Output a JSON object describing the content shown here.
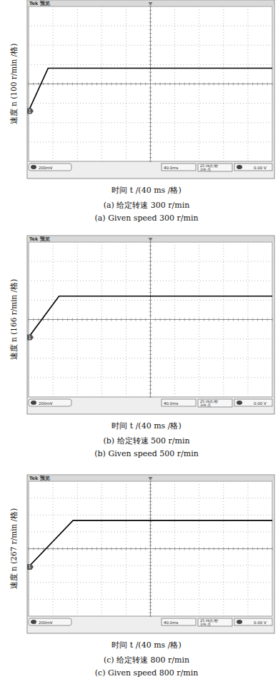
{
  "chart_data": [
    {
      "type": "line",
      "title": "(a) 给定转速 300 r/min",
      "subtitle": "(a) Given speed 300 r/min",
      "x_label": "时间 t /(40 ms /格)",
      "y_label": "速度 n (100 r/min /格)",
      "annotations": [
        "Tek 预览",
        "1",
        "200mV",
        "40.0ms",
        "25.0k次/秒",
        "10k 点",
        "0.00 V"
      ],
      "x": [
        0,
        32,
        400
      ],
      "values": [
        0,
        300,
        300
      ],
      "color": "#000000",
      "xlim": [
        0,
        400
      ],
      "xticks": [
        0,
        40,
        80,
        120,
        160,
        200,
        240,
        280,
        320,
        360,
        400
      ],
      "ylim": [
        -354,
        734
      ],
      "yticks": [
        -354,
        -218,
        -82,
        54,
        190,
        326,
        462,
        598,
        734
      ],
      "grid": true,
      "tick_labels": false
    },
    {
      "type": "line",
      "title": "(b) 给定转速 500 r/min",
      "subtitle": "(b) Given speed 500 r/min",
      "x_label": "时间 t /(40 ms /格)",
      "y_label": "速度 n (166 r/min /格)",
      "annotations": [
        "Tek 预览",
        "1",
        "200mV",
        "40.0ms",
        "25.0k次/秒",
        "10k 点",
        "0.00 V"
      ],
      "x": [
        0,
        50,
        400
      ],
      "values": [
        0,
        500,
        500
      ],
      "color": "#000000",
      "xlim": [
        0,
        400
      ],
      "xticks": [
        0,
        40,
        80,
        120,
        160,
        200,
        240,
        280,
        320,
        360,
        400
      ],
      "ylim": [
        -724,
        1156
      ],
      "yticks": [
        -724,
        -489,
        -254,
        -19,
        216,
        451,
        686,
        921,
        1156
      ],
      "grid": true,
      "tick_labels": false
    },
    {
      "type": "line",
      "title": "(c) 给定转速 800 r/min",
      "subtitle": "(c) Given speed 800 r/min",
      "x_label": "时间 t /(40 ms /格)",
      "y_label": "速度 n (267 r/min /格)",
      "annotations": [
        "Tek 预览",
        "1",
        "200mV",
        "40.0ms",
        "25.0k次/秒",
        "10k 点",
        "0.00 V"
      ],
      "x": [
        0,
        73,
        400
      ],
      "values": [
        0,
        800,
        800
      ],
      "color": "#000000",
      "xlim": [
        0,
        400
      ],
      "xticks": [
        0,
        40,
        80,
        120,
        160,
        200,
        240,
        280,
        320,
        360,
        400
      ],
      "ylim": [
        -847,
        1473
      ],
      "yticks": [
        -847,
        -557,
        -267,
        23,
        313,
        603,
        893,
        1183,
        1473
      ],
      "grid": true,
      "tick_labels": false
    }
  ]
}
